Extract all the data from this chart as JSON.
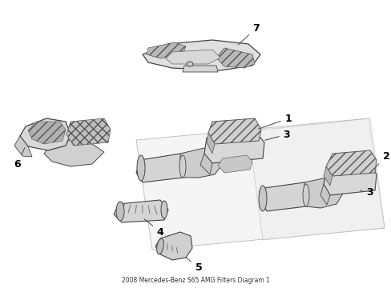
{
  "title": "2008 Mercedes-Benz S65 AMG Filters Diagram 1",
  "background_color": "#ffffff",
  "line_color": "#444444",
  "label_color": "#000000",
  "fig_width": 4.89,
  "fig_height": 3.6,
  "dpi": 100,
  "edge_lw": 0.8,
  "fill_light": "#e8e8e8",
  "fill_mid": "#d0d0d0",
  "fill_dark": "#b0b0b0",
  "hatch_color": "#888888",
  "panel_color": "#eeeeee",
  "panel_edge": "#aaaaaa"
}
